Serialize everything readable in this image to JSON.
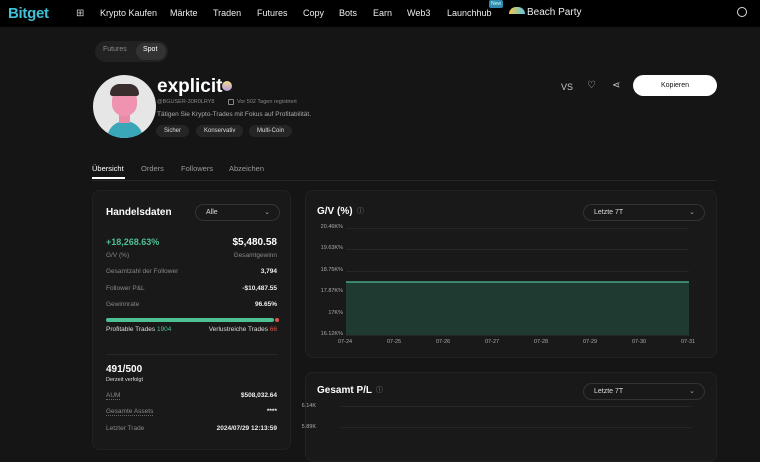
{
  "nav": {
    "logo": "Bitget",
    "items": [
      "Krypto Kaufen",
      "Märkte",
      "Traden",
      "Futures",
      "Copy",
      "Bots",
      "Earn",
      "Web3",
      "Launchhub"
    ],
    "new_badge": "New",
    "promo": "Beach Party"
  },
  "switch": {
    "options": [
      "Futures",
      "Spot"
    ],
    "selected": "Spot"
  },
  "profile": {
    "name": "explicit",
    "uid": "@BGUSER-30R0LRY8",
    "registered": "Vor 502 Tagen registriert",
    "bio": "Tätigen Sie Krypto-Trades mit Fokus auf Profitabilität.",
    "tags": [
      "Sicher",
      "Konservativ",
      "Multi-Coin"
    ],
    "vs": "VS",
    "copy_label": "Kopieren"
  },
  "tabs": [
    "Übersicht",
    "Orders",
    "Followers",
    "Abzeichen"
  ],
  "trade_data": {
    "title": "Handelsdaten",
    "filter": "Alle",
    "roi": "+18,268.63%",
    "roi_label": "G/V (%)",
    "total_profit": "$5,480.58",
    "total_profit_label": "Gesamtgewinn",
    "rows": [
      {
        "label": "Gesamtzahl der Follower",
        "value": "3,794"
      },
      {
        "label": "Follower P&L",
        "value": "-$10,487.55"
      },
      {
        "label": "Gewinnrate",
        "value": "96.65%"
      }
    ],
    "win_rate": 96.65,
    "profitable_label": "Profitable Trades",
    "profitable": "1904",
    "losing_label": "Verlustreiche Trades",
    "losing": "66",
    "followers": "491/500",
    "followers_label": "Derzeit verfolgt",
    "rows2": [
      {
        "label": "AUM",
        "value": "$508,032.64"
      },
      {
        "label": "Gesamte Assets",
        "value": "****"
      },
      {
        "label": "Letzter Trade",
        "value": "2024/07/29 12:13:59"
      }
    ]
  },
  "colors": {
    "green": "#4fbf94",
    "red": "#e0534a"
  },
  "chart_data": [
    {
      "type": "area",
      "title": "G/V (%)",
      "range": "Letzte 7T",
      "x": [
        "07-24",
        "07-25",
        "07-26",
        "07-27",
        "07-28",
        "07-29",
        "07-30",
        "07-31"
      ],
      "yticks": [
        "20.46K%",
        "19.63K%",
        "18.75K%",
        "17.87K%",
        "17K%",
        "16.12K%"
      ],
      "ylim": [
        16120,
        20460
      ],
      "values": [
        18268.63,
        18268.63,
        18268.63,
        18268.63,
        18268.63,
        18268.63,
        18268.63,
        18268.63
      ],
      "grid": true
    },
    {
      "type": "area",
      "title": "Gesamt P/L",
      "range": "Letzte 7T",
      "yticks": [
        "6.14K",
        "5.89K"
      ],
      "grid": true
    }
  ]
}
